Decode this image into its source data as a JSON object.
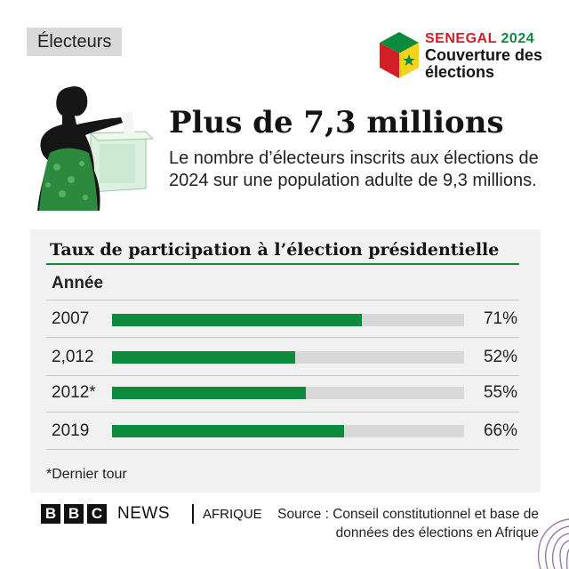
{
  "section_tag": "Électeurs",
  "brand": {
    "country": "SENEGAL",
    "year": "2024",
    "line2": "Couverture des",
    "line3": "élections",
    "colors": {
      "red": "#d21f25",
      "green": "#0d8a3c",
      "yellow": "#f6d21b"
    }
  },
  "headline": "Plus de 7,3 millions",
  "subtext": "Le nombre d’électeurs inscrits aux élections de 2024 sur une population adulte de 9,3 millions.",
  "chart_data": {
    "type": "bar",
    "orientation": "horizontal",
    "title": "Taux de participation à l’élection présidentielle",
    "category_header": "Année",
    "categories": [
      "2007",
      "2,012",
      "2012*",
      "2019"
    ],
    "values": [
      71,
      52,
      55,
      66
    ],
    "value_labels": [
      "71%",
      "52%",
      "55%",
      "66%"
    ],
    "xlim": [
      0,
      100
    ],
    "bar_color": "#0d8a3c",
    "track_color": "#d8d8d8"
  },
  "footnote": "*Dernier tour",
  "footer": {
    "bbc_letters": [
      "B",
      "B",
      "C"
    ],
    "news": "NEWS",
    "afrique": "AFRIQUE",
    "source": "Source : Conseil constitutionnel et base de données des élections en Afrique"
  }
}
